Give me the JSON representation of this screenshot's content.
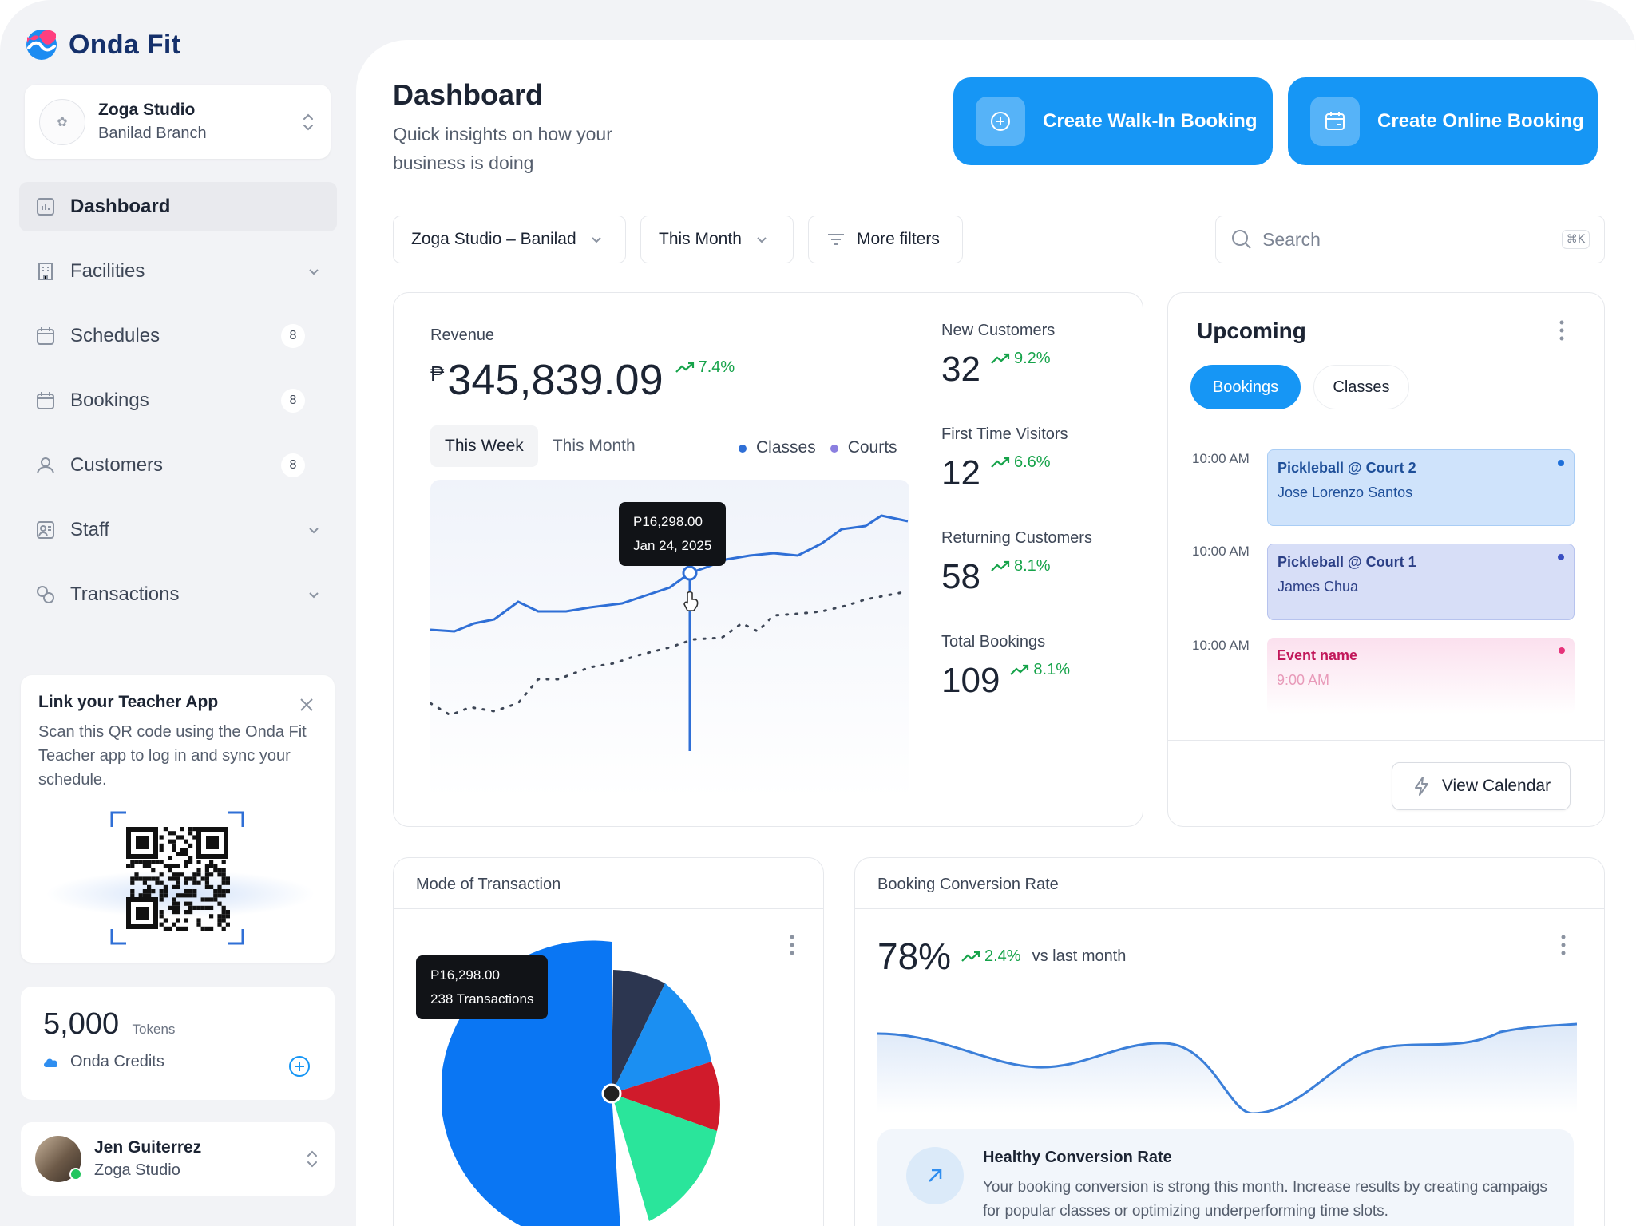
{
  "brand": {
    "name": "Onda Fit"
  },
  "studio_switcher": {
    "name": "Zoga Studio",
    "branch": "Banilad Branch"
  },
  "nav": [
    {
      "label": "Dashboard",
      "icon": "chart-icon",
      "active": true
    },
    {
      "label": "Facilities",
      "icon": "building-icon",
      "expand": true
    },
    {
      "label": "Schedules",
      "icon": "calendar-icon",
      "badge": "8"
    },
    {
      "label": "Bookings",
      "icon": "calendar-icon",
      "badge": "8"
    },
    {
      "label": "Customers",
      "icon": "user-icon",
      "badge": "8"
    },
    {
      "label": "Staff",
      "icon": "staff-icon",
      "expand": true
    },
    {
      "label": "Transactions",
      "icon": "transactions-icon",
      "expand": true
    }
  ],
  "teacher_app": {
    "title": "Link your Teacher App",
    "body": "Scan this QR code using the Onda Fit Teacher app to log in and sync your schedule."
  },
  "tokens": {
    "amount": "5,000",
    "unit": "Tokens",
    "label": "Onda Credits"
  },
  "user": {
    "name": "Jen Guiterrez",
    "org": "Zoga Studio"
  },
  "header": {
    "title": "Dashboard",
    "subtitle": "Quick insights on how your business is doing",
    "walkin_button": "Create Walk-In Booking",
    "online_button": "Create Online Booking"
  },
  "filters": {
    "studio": "Zoga Studio – Banilad",
    "period": "This Month",
    "more": "More filters",
    "search_placeholder": "Search",
    "search_shortcut": "⌘K"
  },
  "revenue": {
    "label": "Revenue",
    "currency": "₱",
    "value": "345,839.09",
    "trend": "7.4%",
    "tab_week": "This Week",
    "tab_month": "This Month",
    "legend_classes": "Classes",
    "legend_courts": "Courts",
    "tooltip_value": "P16,298.00",
    "tooltip_date": "Jan 24, 2025"
  },
  "stats": [
    {
      "label": "New Customers",
      "value": "32",
      "trend": "9.2%"
    },
    {
      "label": "First Time Visitors",
      "value": "12",
      "trend": "6.6%"
    },
    {
      "label": "Returning Customers",
      "value": "58",
      "trend": "8.1%"
    },
    {
      "label": "Total Bookings",
      "value": "109",
      "trend": "8.1%"
    }
  ],
  "upcoming": {
    "title": "Upcoming",
    "tab_bookings": "Bookings",
    "tab_classes": "Classes",
    "events": [
      {
        "time": "10:00 AM",
        "title": "Pickleball @ Court 2",
        "sub": "Jose Lorenzo Santos"
      },
      {
        "time": "10:00 AM",
        "title": "Pickleball @ Court 1",
        "sub": "James Chua"
      },
      {
        "time": "10:00 AM",
        "title": "Event name",
        "sub": "9:00 AM"
      }
    ],
    "view_calendar": "View Calendar"
  },
  "mode_of_transaction": {
    "title": "Mode of Transaction",
    "tooltip_value": "P16,298.00",
    "tooltip_count": "238 Transactions"
  },
  "conversion": {
    "title": "Booking Conversion Rate",
    "value": "78%",
    "trend": "2.4%",
    "vs": "vs last month",
    "health_title": "Healthy Conversion Rate",
    "health_body": "Your booking conversion is strong this month. Increase results by creating campaigs for popular classes or optimizing underperforming time slots."
  },
  "colors": {
    "accent": "#1696f5",
    "trend_up": "#16a34a",
    "classes": "#2f6fd6",
    "courts": "#8b7fe0"
  }
}
